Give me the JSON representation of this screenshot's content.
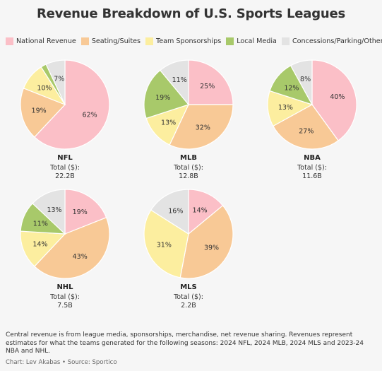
{
  "title": "Revenue Breakdown of U.S. Sports Leagues",
  "legend": [
    {
      "label": "National Revenue",
      "color": "#fbbfc7"
    },
    {
      "label": "Seating/Suites",
      "color": "#f8c996"
    },
    {
      "label": "Team Sponsorships",
      "color": "#fcee9f"
    },
    {
      "label": "Local Media",
      "color": "#a8c96a"
    },
    {
      "label": "Concessions/Parking/Other",
      "color": "#e3e3e3"
    }
  ],
  "chart_data": [
    {
      "type": "pie",
      "title": "NFL",
      "total_label": "Total ($):",
      "total": "22.2B",
      "categories": [
        "National Revenue",
        "Seating/Suites",
        "Team Sponsorships",
        "Local Media",
        "Concessions/Parking/Other"
      ],
      "values": [
        62,
        19,
        10,
        2,
        7
      ],
      "labels": [
        "62%",
        "19%",
        "10%",
        "",
        "7%"
      ]
    },
    {
      "type": "pie",
      "title": "MLB",
      "total_label": "Total ($):",
      "total": "12.8B",
      "categories": [
        "National Revenue",
        "Seating/Suites",
        "Team Sponsorships",
        "Local Media",
        "Concessions/Parking/Other"
      ],
      "values": [
        25,
        32,
        13,
        19,
        11
      ],
      "labels": [
        "25%",
        "32%",
        "13%",
        "19%",
        "11%"
      ]
    },
    {
      "type": "pie",
      "title": "NBA",
      "total_label": "Total ($):",
      "total": "11.6B",
      "categories": [
        "National Revenue",
        "Seating/Suites",
        "Team Sponsorships",
        "Local Media",
        "Concessions/Parking/Other"
      ],
      "values": [
        40,
        27,
        13,
        12,
        8
      ],
      "labels": [
        "40%",
        "27%",
        "13%",
        "12%",
        "8%"
      ]
    },
    {
      "type": "pie",
      "title": "NHL",
      "total_label": "Total ($):",
      "total": "7.5B",
      "categories": [
        "National Revenue",
        "Seating/Suites",
        "Team Sponsorships",
        "Local Media",
        "Concessions/Parking/Other"
      ],
      "values": [
        19,
        43,
        14,
        11,
        13
      ],
      "labels": [
        "19%",
        "43%",
        "14%",
        "11%",
        "13%"
      ]
    },
    {
      "type": "pie",
      "title": "MLS",
      "total_label": "Total ($):",
      "total": "2.2B",
      "categories": [
        "National Revenue",
        "Seating/Suites",
        "Team Sponsorships",
        "Local Media",
        "Concessions/Parking/Other"
      ],
      "values": [
        14,
        39,
        31,
        0,
        16
      ],
      "labels": [
        "14%",
        "39%",
        "31%",
        "",
        "16%"
      ]
    }
  ],
  "footnote": "Central revenue is from league media, sponsorships, merchandise, net revenue sharing. Revenues represent estimates for what the teams generated for the following seasons: 2024 NFL, 2024 MLB, 2024 MLS and 2023-24 NBA and NHL.",
  "credit": "Chart: Lev Akabas • Source: Sportico"
}
